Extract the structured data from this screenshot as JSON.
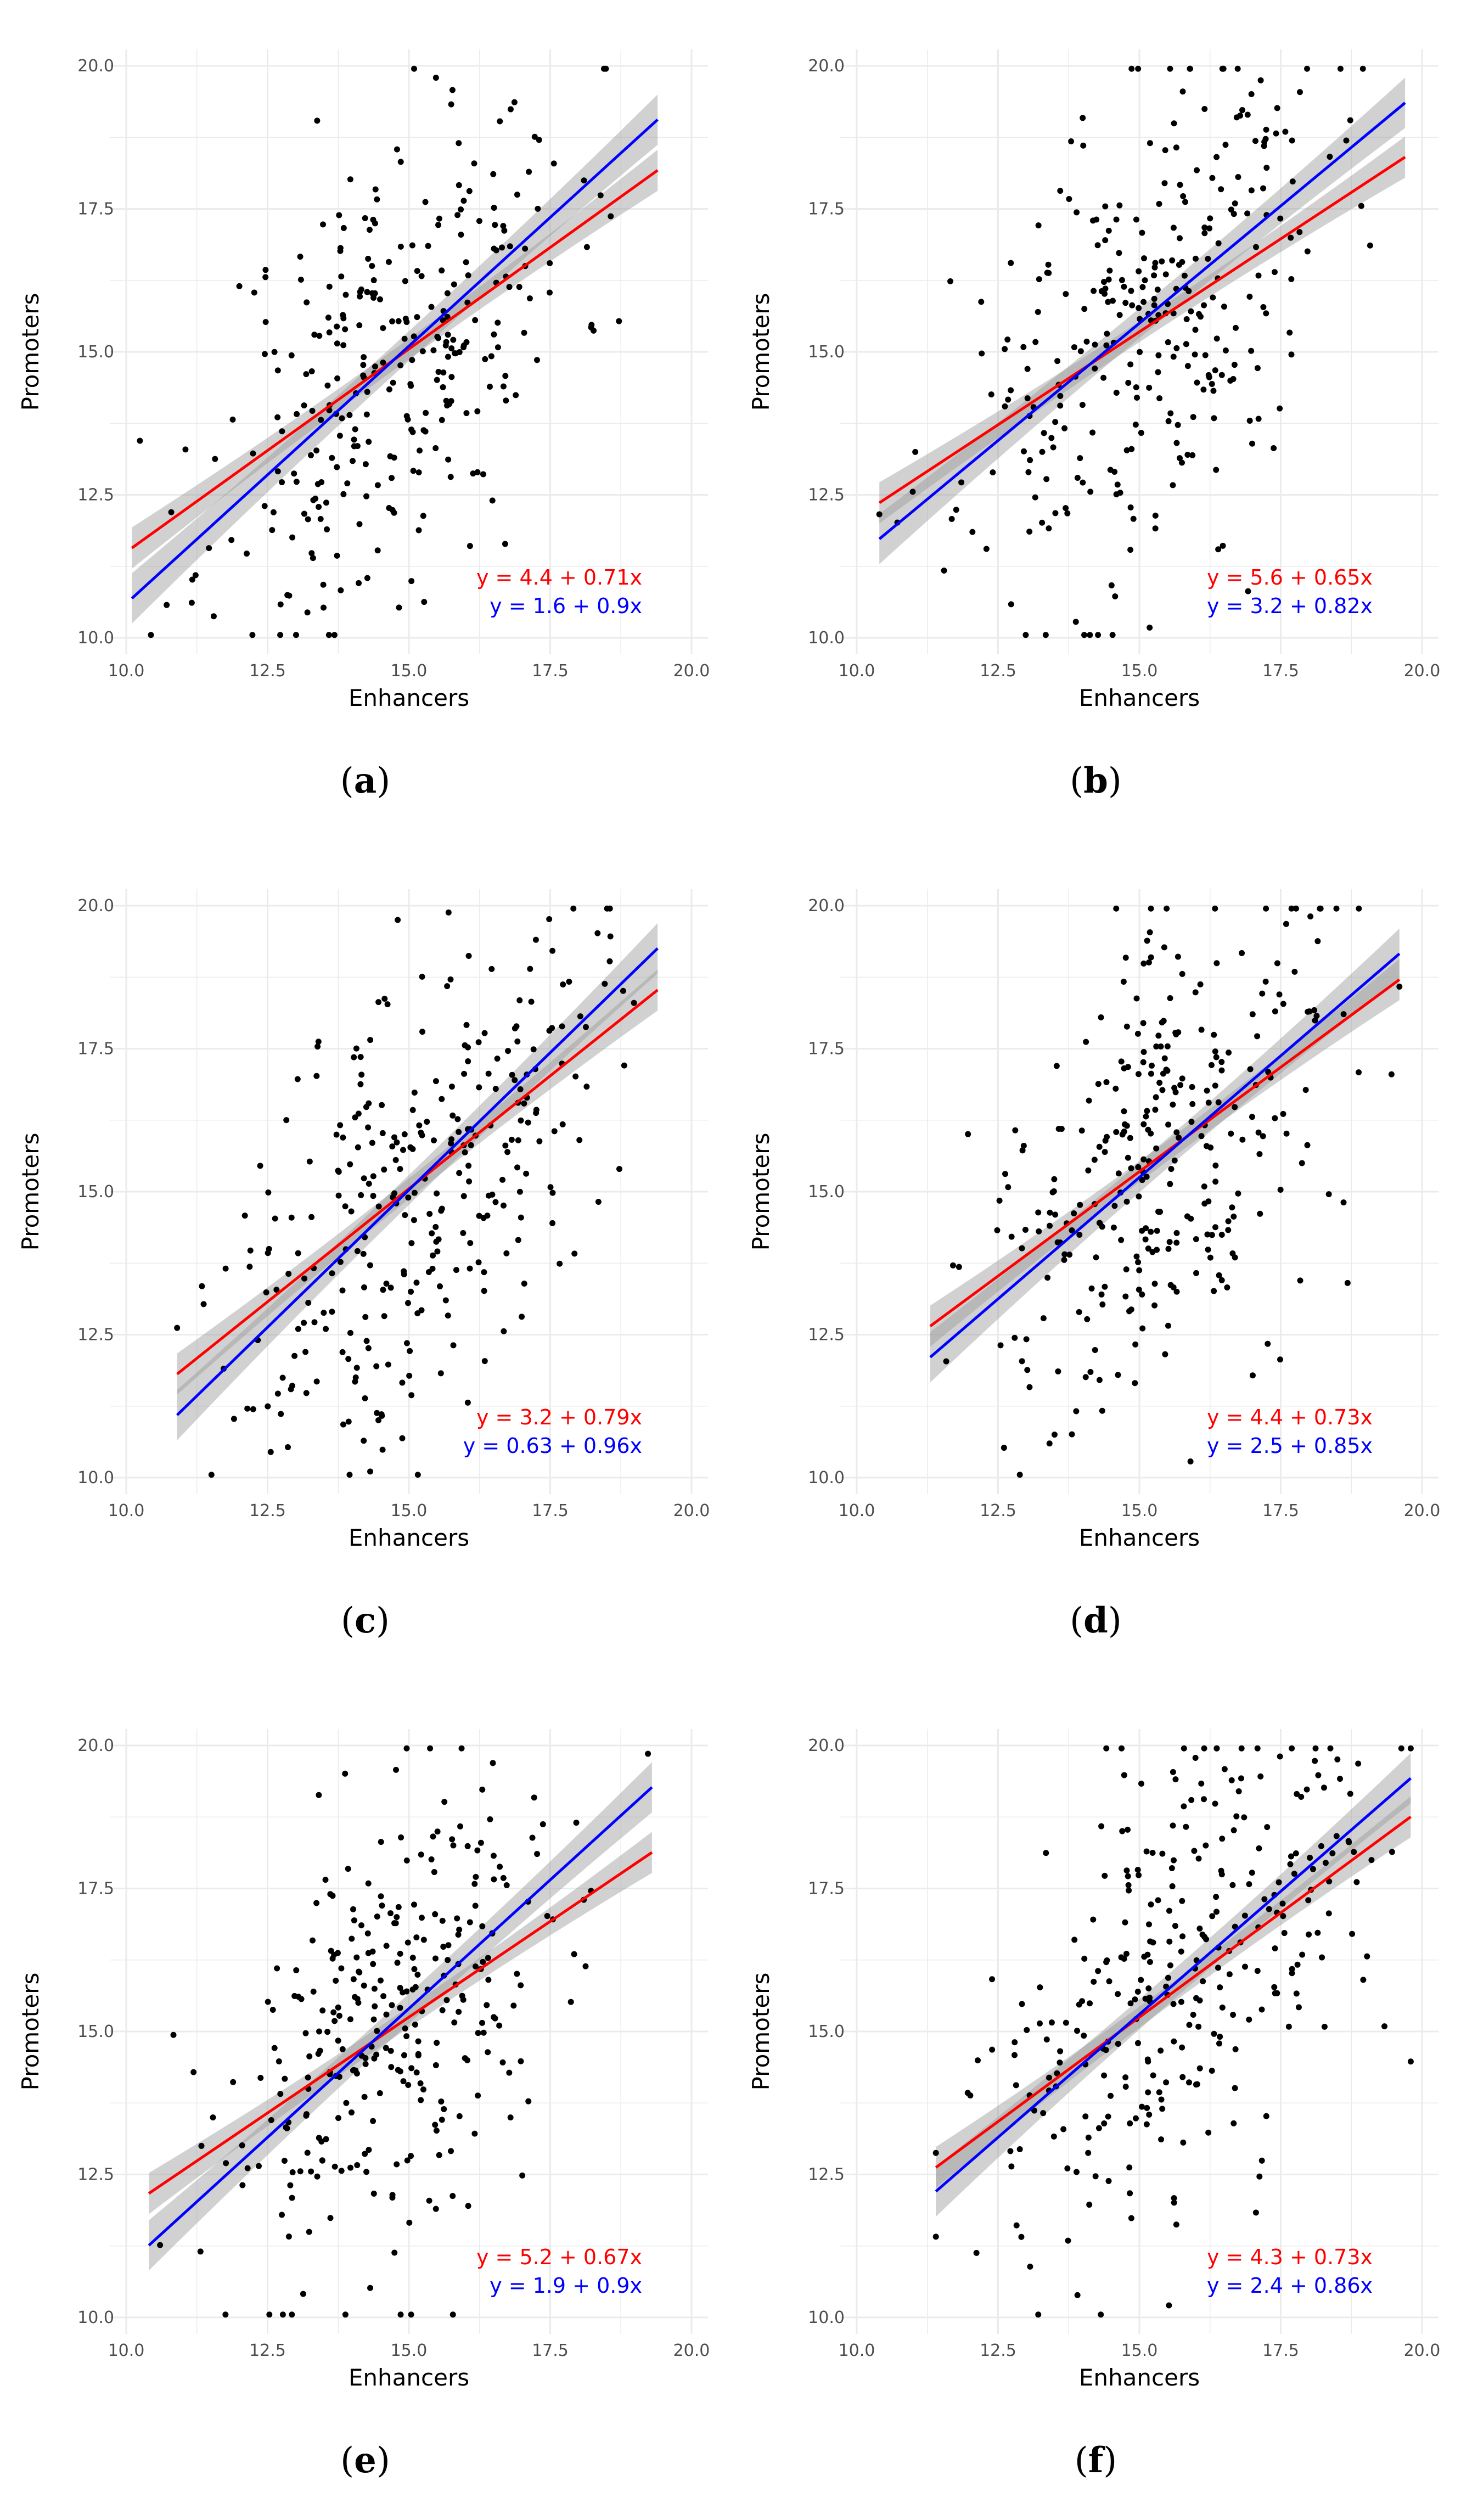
{
  "chart_data": [
    {
      "type": "scatter",
      "panel": "a",
      "xlabel": "Enhancers",
      "ylabel": "Promoters",
      "xlim": [
        10,
        20
      ],
      "ylim": [
        10,
        20
      ],
      "xticks": [
        "10.0",
        "12.5",
        "15.0",
        "17.5",
        "20.0"
      ],
      "yticks": [
        "10.0",
        "12.5",
        "15.0",
        "17.5",
        "20.0"
      ],
      "x_range": [
        10.1,
        19.4
      ],
      "seed": 11,
      "spread": 2.0,
      "series": [
        {
          "name": "red fit",
          "color": "#ff0000",
          "intercept": 4.4,
          "slope": 0.71,
          "equation": "y = 4.4 + 0.71x"
        },
        {
          "name": "blue fit",
          "color": "#0000ff",
          "intercept": 1.6,
          "slope": 0.9,
          "equation": "y = 1.6 + 0.9x"
        }
      ]
    },
    {
      "type": "scatter",
      "panel": "b",
      "xlabel": "Enhancers",
      "ylabel": "Promoters",
      "xlim": [
        10,
        20
      ],
      "ylim": [
        10,
        20
      ],
      "xticks": [
        "10.0",
        "12.5",
        "15.0",
        "17.5",
        "20.0"
      ],
      "yticks": [
        "10.0",
        "12.5",
        "15.0",
        "17.5",
        "20.0"
      ],
      "x_range": [
        10.4,
        19.7
      ],
      "seed": 23,
      "spread": 2.1,
      "series": [
        {
          "name": "red fit",
          "color": "#ff0000",
          "intercept": 5.6,
          "slope": 0.65,
          "equation": "y = 5.6 + 0.65x"
        },
        {
          "name": "blue fit",
          "color": "#0000ff",
          "intercept": 3.2,
          "slope": 0.82,
          "equation": "y = 3.2 + 0.82x"
        }
      ]
    },
    {
      "type": "scatter",
      "panel": "c",
      "xlabel": "Enhancers",
      "ylabel": "Promoters",
      "xlim": [
        10,
        20
      ],
      "ylim": [
        10,
        20
      ],
      "xticks": [
        "10.0",
        "12.5",
        "15.0",
        "17.5",
        "20.0"
      ],
      "yticks": [
        "10.0",
        "12.5",
        "15.0",
        "17.5",
        "20.0"
      ],
      "x_range": [
        10.9,
        19.4
      ],
      "seed": 37,
      "spread": 2.0,
      "series": [
        {
          "name": "red fit",
          "color": "#ff0000",
          "intercept": 3.2,
          "slope": 0.79,
          "equation": "y = 3.2 + 0.79x"
        },
        {
          "name": "blue fit",
          "color": "#0000ff",
          "intercept": 0.63,
          "slope": 0.96,
          "equation": "y = 0.63 + 0.96x"
        }
      ]
    },
    {
      "type": "scatter",
      "panel": "d",
      "xlabel": "Enhancers",
      "ylabel": "Promoters",
      "xlim": [
        10,
        20
      ],
      "ylim": [
        10,
        20
      ],
      "xticks": [
        "10.0",
        "12.5",
        "15.0",
        "17.5",
        "20.0"
      ],
      "yticks": [
        "10.0",
        "12.5",
        "15.0",
        "17.5",
        "20.0"
      ],
      "x_range": [
        11.3,
        19.6
      ],
      "seed": 41,
      "spread": 2.0,
      "series": [
        {
          "name": "red fit",
          "color": "#ff0000",
          "intercept": 4.4,
          "slope": 0.73,
          "equation": "y = 4.4 + 0.73x"
        },
        {
          "name": "blue fit",
          "color": "#0000ff",
          "intercept": 2.5,
          "slope": 0.85,
          "equation": "y = 2.5 + 0.85x"
        }
      ]
    },
    {
      "type": "scatter",
      "panel": "e",
      "xlabel": "Enhancers",
      "ylabel": "Promoters",
      "xlim": [
        10,
        20
      ],
      "ylim": [
        10,
        20
      ],
      "xticks": [
        "10.0",
        "12.5",
        "15.0",
        "17.5",
        "20.0"
      ],
      "yticks": [
        "10.0",
        "12.5",
        "15.0",
        "17.5",
        "20.0"
      ],
      "x_range": [
        10.4,
        19.3
      ],
      "seed": 53,
      "spread": 2.0,
      "series": [
        {
          "name": "red fit",
          "color": "#ff0000",
          "intercept": 5.2,
          "slope": 0.67,
          "equation": "y = 5.2 + 0.67x"
        },
        {
          "name": "blue fit",
          "color": "#0000ff",
          "intercept": 1.9,
          "slope": 0.9,
          "equation": "y = 1.9 + 0.9x"
        }
      ]
    },
    {
      "type": "scatter",
      "panel": "f",
      "xlabel": "Enhancers",
      "ylabel": "Promoters",
      "xlim": [
        10,
        20
      ],
      "ylim": [
        10,
        20
      ],
      "xticks": [
        "10.0",
        "12.5",
        "15.0",
        "17.5",
        "20.0"
      ],
      "yticks": [
        "10.0",
        "12.5",
        "15.0",
        "17.5",
        "20.0"
      ],
      "x_range": [
        11.4,
        19.8
      ],
      "seed": 67,
      "spread": 2.0,
      "series": [
        {
          "name": "red fit",
          "color": "#ff0000",
          "intercept": 4.3,
          "slope": 0.73,
          "equation": "y = 4.3 + 0.73x"
        },
        {
          "name": "blue fit",
          "color": "#0000ff",
          "intercept": 2.4,
          "slope": 0.86,
          "equation": "y = 2.4 + 0.86x"
        }
      ]
    }
  ],
  "captions": [
    "a",
    "b",
    "c",
    "d",
    "e",
    "f"
  ],
  "style": {
    "point_color": "#000000",
    "grid_color": "#ebebeb",
    "band_color": "#9a9a9a"
  }
}
